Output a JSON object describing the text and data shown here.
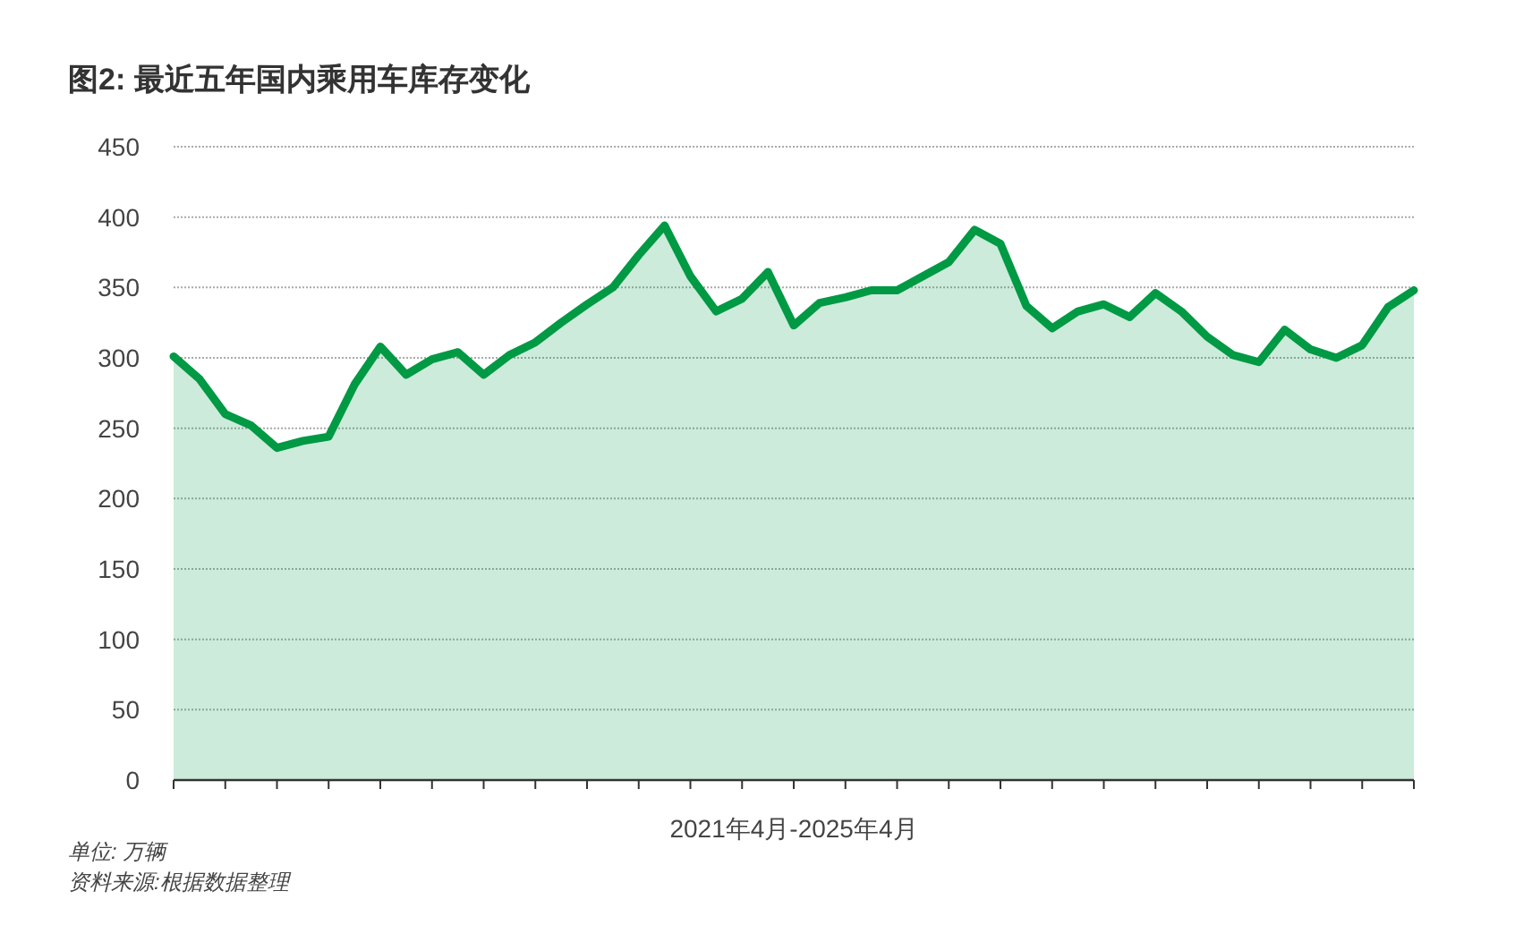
{
  "chart_data": {
    "type": "area",
    "title": "图2: 最近五年国内乘用车库存变化",
    "xlabel": "2021年4月-2025年4月",
    "categories": [
      null,
      null,
      null,
      null,
      null,
      null,
      null,
      null,
      null,
      null,
      null,
      null,
      null,
      null,
      null,
      null,
      null,
      null,
      null,
      null,
      null,
      null,
      null,
      null,
      null,
      null,
      null,
      null,
      null,
      null,
      null,
      null,
      null,
      null,
      null,
      null,
      null,
      null,
      null,
      null,
      null,
      null,
      null,
      null,
      null,
      null,
      null,
      null,
      null
    ],
    "series": [
      {
        "color": "#009944",
        "values": [
          301,
          285,
          260,
          252,
          236,
          241,
          244,
          281,
          308,
          288,
          299,
          304,
          288,
          302,
          311,
          325,
          338,
          350,
          373,
          394,
          358,
          333,
          342,
          361,
          323,
          339,
          343,
          348,
          348,
          358,
          368,
          391,
          381,
          337,
          321,
          333,
          338,
          329,
          346,
          333,
          315,
          302,
          297,
          320,
          306,
          300,
          309,
          336,
          348
        ]
      }
    ],
    "ylim": [
      0,
      450
    ],
    "yticks": [
      0,
      50,
      100,
      150,
      200,
      250,
      300,
      350,
      400,
      450
    ],
    "grid": "y",
    "annotations": [
      "单位: 万辆",
      "资料来源:根据数据整理"
    ]
  }
}
